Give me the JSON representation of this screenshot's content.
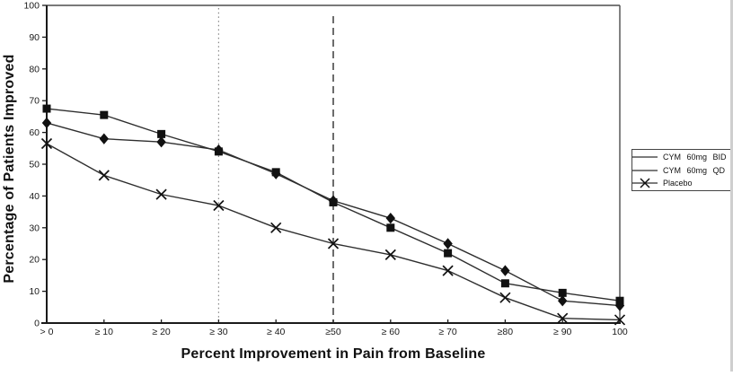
{
  "chart_data": {
    "type": "line",
    "title": "",
    "xlabel": "Percent Improvement in Pain from Baseline",
    "ylabel": "Percentage of Patients Improved",
    "x_values": [
      0,
      10,
      20,
      30,
      40,
      50,
      60,
      70,
      80,
      90,
      100
    ],
    "x_tick_labels": [
      "> 0",
      "≥ 10",
      "≥ 20",
      "≥ 30",
      "≥ 40",
      "≥50",
      "≥ 60",
      "≥ 70",
      "≥80",
      "≥ 90",
      "100"
    ],
    "y_ticks": [
      0,
      10,
      20,
      30,
      40,
      50,
      60,
      70,
      80,
      90,
      100
    ],
    "ylim": [
      0,
      100
    ],
    "xlim": [
      0,
      100
    ],
    "grid": false,
    "legend_position": "right-outside",
    "reference_lines": [
      {
        "x": 30,
        "style": "dotted"
      },
      {
        "x": 50,
        "style": "dashed"
      }
    ],
    "series": [
      {
        "name": "CYM 60mg BID",
        "marker": "square",
        "values": [
          67.5,
          65.5,
          59.5,
          54,
          47.5,
          38,
          30,
          22,
          12.5,
          9.5,
          7
        ]
      },
      {
        "name": "CYM 60mg QD",
        "marker": "diamond",
        "values": [
          63,
          58,
          57,
          54.5,
          47,
          38.5,
          33,
          25,
          16.5,
          7,
          5.5
        ]
      },
      {
        "name": "Placebo",
        "marker": "x",
        "values": [
          56.5,
          46.5,
          40.5,
          37,
          30,
          25,
          21.5,
          16.5,
          8,
          1.5,
          1
        ]
      }
    ]
  },
  "colors": {
    "line": "#2e2e2e",
    "marker": "#111111",
    "text": "#1a1a1a",
    "axis": "#1a1a1a",
    "border": "#4d4d4d",
    "dotted_ref": "#888888",
    "dashed_ref": "#3c3c3c",
    "background": "#ffffff"
  }
}
